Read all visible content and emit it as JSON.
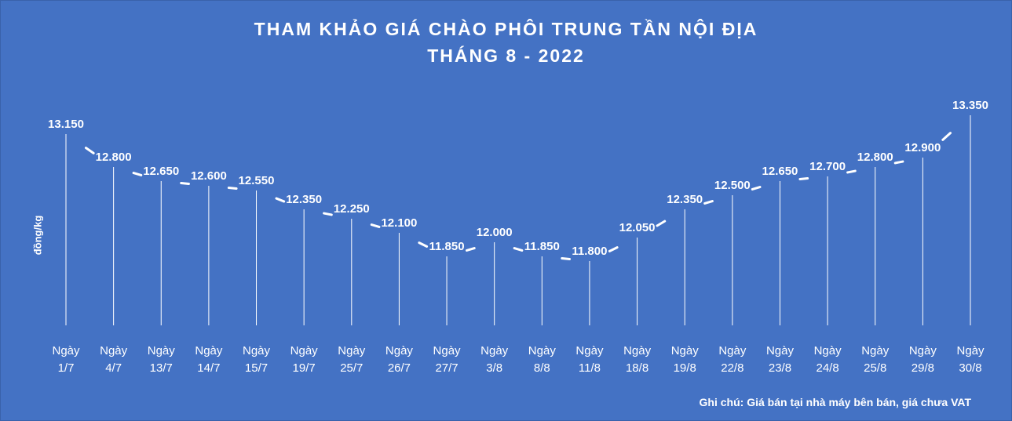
{
  "chart_data": {
    "type": "line",
    "title": [
      "THAM KHẢO GIÁ CHÀO PHÔI TRUNG TẦN NỘI ĐỊA",
      "THÁNG 8 - 2022"
    ],
    "ylabel": "đồng/kg",
    "xlabel": "",
    "categories": [
      [
        "Ngày",
        "1/7"
      ],
      [
        "Ngày",
        "4/7"
      ],
      [
        "Ngày",
        "13/7"
      ],
      [
        "Ngày",
        "14/7"
      ],
      [
        "Ngày",
        "15/7"
      ],
      [
        "Ngày",
        "19/7"
      ],
      [
        "Ngày",
        "25/7"
      ],
      [
        "Ngày",
        "26/7"
      ],
      [
        "Ngày",
        "27/7"
      ],
      [
        "Ngày",
        "3/8"
      ],
      [
        "Ngày",
        "8/8"
      ],
      [
        "Ngày",
        "11/8"
      ],
      [
        "Ngày",
        "18/8"
      ],
      [
        "Ngày",
        "19/8"
      ],
      [
        "Ngày",
        "22/8"
      ],
      [
        "Ngày",
        "23/8"
      ],
      [
        "Ngày",
        "24/8"
      ],
      [
        "Ngày",
        "25/8"
      ],
      [
        "Ngày",
        "29/8"
      ],
      [
        "Ngày",
        "30/8"
      ]
    ],
    "values": [
      13150,
      12800,
      12650,
      12600,
      12550,
      12350,
      12250,
      12100,
      11850,
      12000,
      11850,
      11800,
      12050,
      12350,
      12500,
      12650,
      12700,
      12800,
      12900,
      13350
    ],
    "value_labels": [
      "13.150",
      "12.800",
      "12.650",
      "12.600",
      "12.550",
      "12.350",
      "12.250",
      "12.100",
      "11.850",
      "12.000",
      "11.850",
      "11.800",
      "12.050",
      "12.350",
      "12.500",
      "12.650",
      "12.700",
      "12.800",
      "12.900",
      "13.350"
    ],
    "ylim": [
      11000,
      13400
    ],
    "grid": false,
    "legend": "none",
    "colors": {
      "background": "#4472c4",
      "line": "#ffffff",
      "text": "#ffffff"
    }
  },
  "note": "Ghi chú: Giá bán tại nhà máy bên bán, giá chưa VAT"
}
